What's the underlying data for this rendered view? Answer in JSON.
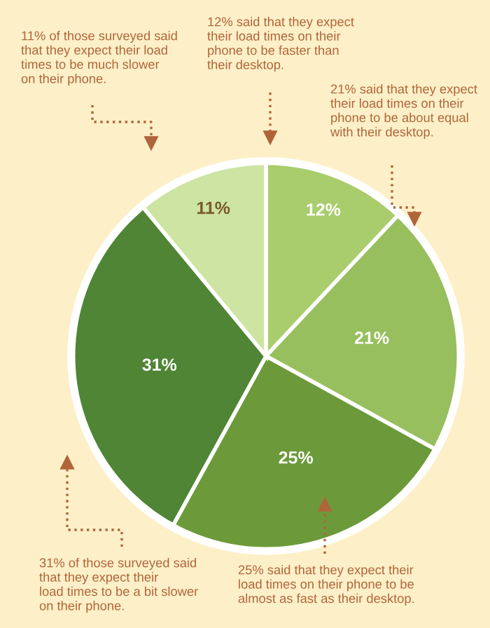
{
  "chart_data": {
    "type": "pie",
    "categories": [
      null,
      null,
      null,
      null,
      null
    ],
    "values": [
      12,
      21,
      25,
      31,
      11
    ],
    "value_labels": [
      "12%",
      "21%",
      "25%",
      "31%",
      "11%"
    ],
    "colors": [
      "#a9cd6c",
      "#97bf5e",
      "#6c9a3a",
      "#4f8535",
      "#cde4a2"
    ],
    "annotations": [
      "12% said that they expect\ntheir load times on their\nphone to be faster than\ntheir desktop.",
      "21% said that they expect\ntheir load times on their\nphone to be about equal\nwith their desktop.",
      "25% said that they expect their\nload times on their phone to be\nalmost as fast as their desktop.",
      "31% of those surveyed said\nthat they expect their\nload times to be a bit slower\non their phone.",
      "11% of those surveyed said\nthat they expect their load\ntimes to be much slower\non their phone."
    ]
  }
}
